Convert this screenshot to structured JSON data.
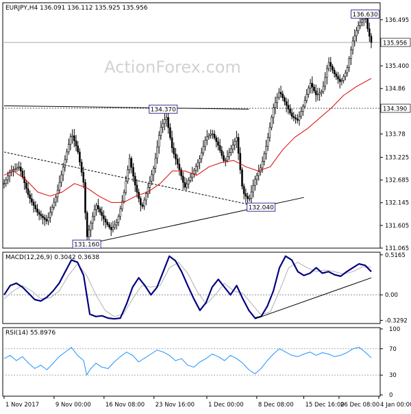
{
  "header": {
    "symbol": "EURJPY,H4",
    "ohlc": "136.091 136.112 135.925 135.956"
  },
  "watermark": "ActionForex.com",
  "colors": {
    "candle": "#000000",
    "ema_slow": "#dd0000",
    "macd_line": "#000080",
    "macd_signal": "#b0b0b0",
    "rsi": "#1e90ff",
    "trendline": "#000000",
    "label_border": "#000080",
    "current_price_tag": "#ffffff"
  },
  "chart_data": [
    {
      "type": "candlestick",
      "panel": "price",
      "header_label": "EURJPY,H4 136.091 136.112 135.925 135.956",
      "x_tick_labels": [
        "1 Nov 2017",
        "9 Nov 00:00",
        "16 Nov 08:00",
        "23 Nov 16:00",
        "1 Dec 00:00",
        "8 Dec 08:00",
        "15 Dec 16:00",
        "26 Dec 08:00",
        "4 Jan 00:00"
      ],
      "y_tick_labels": [
        136.495,
        135.956,
        135.4,
        134.86,
        134.39,
        133.78,
        133.225,
        132.685,
        132.145,
        131.605,
        131.065
      ],
      "ylim": [
        131.065,
        136.9
      ],
      "price_points": [
        [
          0,
          132.6
        ],
        [
          2,
          132.9
        ],
        [
          5,
          133.0
        ],
        [
          8,
          132.3
        ],
        [
          11,
          131.9
        ],
        [
          14,
          131.7
        ],
        [
          17,
          132.3
        ],
        [
          20,
          133.2
        ],
        [
          22,
          133.8
        ],
        [
          24,
          133.4
        ],
        [
          26,
          132.6
        ],
        [
          27,
          131.3
        ],
        [
          30,
          132.1
        ],
        [
          33,
          131.7
        ],
        [
          35,
          131.5
        ],
        [
          37,
          131.7
        ],
        [
          39,
          132.3
        ],
        [
          41,
          133.2
        ],
        [
          43,
          132.5
        ],
        [
          45,
          132.0
        ],
        [
          47,
          132.5
        ],
        [
          49,
          133.0
        ],
        [
          51,
          133.9
        ],
        [
          53,
          134.2
        ],
        [
          55,
          133.4
        ],
        [
          57,
          133.0
        ],
        [
          59,
          132.5
        ],
        [
          62,
          132.9
        ],
        [
          64,
          133.2
        ],
        [
          66,
          133.7
        ],
        [
          68,
          133.8
        ],
        [
          70,
          133.5
        ],
        [
          72,
          133.1
        ],
        [
          74,
          133.4
        ],
        [
          76,
          133.7
        ],
        [
          78,
          132.4
        ],
        [
          80,
          132.2
        ],
        [
          82,
          132.7
        ],
        [
          84,
          133.0
        ],
        [
          86,
          133.6
        ],
        [
          88,
          134.4
        ],
        [
          90,
          134.8
        ],
        [
          92,
          134.5
        ],
        [
          94,
          134.2
        ],
        [
          96,
          134.1
        ],
        [
          98,
          134.5
        ],
        [
          100,
          135.0
        ],
        [
          102,
          134.7
        ],
        [
          104,
          134.8
        ],
        [
          106,
          135.5
        ],
        [
          108,
          135.2
        ],
        [
          110,
          135.0
        ],
        [
          112,
          135.3
        ],
        [
          114,
          136.0
        ],
        [
          116,
          136.4
        ],
        [
          118,
          136.6
        ],
        [
          119,
          136.2
        ],
        [
          120,
          135.956
        ]
      ],
      "ema_points": [
        [
          0,
          132.8
        ],
        [
          3,
          132.9
        ],
        [
          7,
          132.7
        ],
        [
          11,
          132.4
        ],
        [
          15,
          132.3
        ],
        [
          19,
          132.4
        ],
        [
          23,
          132.6
        ],
        [
          27,
          132.5
        ],
        [
          31,
          132.3
        ],
        [
          35,
          132.15
        ],
        [
          39,
          132.15
        ],
        [
          43,
          132.3
        ],
        [
          47,
          132.4
        ],
        [
          51,
          132.6
        ],
        [
          55,
          132.9
        ],
        [
          59,
          132.9
        ],
        [
          63,
          132.8
        ],
        [
          67,
          133.0
        ],
        [
          71,
          133.1
        ],
        [
          75,
          133.15
        ],
        [
          79,
          133.0
        ],
        [
          83,
          132.9
        ],
        [
          87,
          133.0
        ],
        [
          91,
          133.4
        ],
        [
          95,
          133.7
        ],
        [
          99,
          133.9
        ],
        [
          103,
          134.15
        ],
        [
          107,
          134.4
        ],
        [
          111,
          134.7
        ],
        [
          115,
          134.9
        ],
        [
          120,
          135.1
        ]
      ],
      "price_labels": [
        {
          "text": "136.630",
          "x": 118,
          "y": 136.63
        },
        {
          "text": "134.370",
          "x": 52,
          "y": 134.37
        },
        {
          "text": "132.040",
          "x": 84,
          "y": 132.04
        },
        {
          "text": "131.160",
          "x": 27,
          "y": 131.16
        }
      ],
      "horizontal_lines": [
        {
          "value": 135.956,
          "label": "135.956",
          "style": "current"
        },
        {
          "value": 134.39,
          "label": "134.390",
          "style": "level"
        }
      ],
      "trendlines": [
        {
          "from": [
            0,
            134.45
          ],
          "to": [
            80,
            134.37
          ],
          "style": "solid"
        },
        {
          "from": [
            27,
            131.16
          ],
          "to": [
            98,
            132.27
          ],
          "style": "solid"
        },
        {
          "from": [
            0,
            133.35
          ],
          "to": [
            84,
            132.04
          ],
          "style": "dashed"
        }
      ]
    },
    {
      "type": "line",
      "panel": "macd",
      "header_label": "MACD(12,26,9) 0.3042 0.3638",
      "y_tick_labels": [
        0.5165,
        0.0,
        -0.3292
      ],
      "ylim": [
        -0.3292,
        0.5165
      ],
      "series": [
        {
          "role": "macd",
          "points": [
            [
              0,
              0.0
            ],
            [
              2,
              0.12
            ],
            [
              4,
              0.15
            ],
            [
              6,
              0.1
            ],
            [
              8,
              0.02
            ],
            [
              10,
              -0.06
            ],
            [
              12,
              -0.08
            ],
            [
              14,
              -0.03
            ],
            [
              16,
              0.05
            ],
            [
              18,
              0.15
            ],
            [
              20,
              0.3
            ],
            [
              22,
              0.45
            ],
            [
              24,
              0.42
            ],
            [
              26,
              0.25
            ],
            [
              27,
              0.0
            ],
            [
              28,
              -0.25
            ],
            [
              30,
              -0.28
            ],
            [
              32,
              -0.27
            ],
            [
              34,
              -0.3
            ],
            [
              36,
              -0.31
            ],
            [
              38,
              -0.3
            ],
            [
              40,
              -0.12
            ],
            [
              42,
              0.1
            ],
            [
              44,
              0.22
            ],
            [
              46,
              0.12
            ],
            [
              48,
              0.0
            ],
            [
              50,
              0.1
            ],
            [
              52,
              0.3
            ],
            [
              54,
              0.5
            ],
            [
              56,
              0.44
            ],
            [
              58,
              0.3
            ],
            [
              60,
              0.12
            ],
            [
              62,
              -0.05
            ],
            [
              64,
              -0.2
            ],
            [
              66,
              -0.1
            ],
            [
              68,
              0.1
            ],
            [
              70,
              0.2
            ],
            [
              72,
              0.1
            ],
            [
              74,
              0.0
            ],
            [
              76,
              0.12
            ],
            [
              78,
              -0.05
            ],
            [
              80,
              -0.2
            ],
            [
              82,
              -0.3
            ],
            [
              84,
              -0.28
            ],
            [
              86,
              -0.15
            ],
            [
              88,
              0.05
            ],
            [
              90,
              0.35
            ],
            [
              92,
              0.5
            ],
            [
              94,
              0.45
            ],
            [
              96,
              0.3
            ],
            [
              98,
              0.25
            ],
            [
              100,
              0.28
            ],
            [
              102,
              0.35
            ],
            [
              104,
              0.28
            ],
            [
              106,
              0.3
            ],
            [
              108,
              0.26
            ],
            [
              110,
              0.24
            ],
            [
              112,
              0.3
            ],
            [
              114,
              0.35
            ],
            [
              116,
              0.4
            ],
            [
              118,
              0.38
            ],
            [
              120,
              0.3
            ]
          ]
        },
        {
          "role": "signal",
          "points": [
            [
              0,
              -0.05
            ],
            [
              3,
              0.05
            ],
            [
              6,
              0.12
            ],
            [
              9,
              0.05
            ],
            [
              12,
              -0.05
            ],
            [
              15,
              -0.04
            ],
            [
              18,
              0.05
            ],
            [
              21,
              0.25
            ],
            [
              24,
              0.4
            ],
            [
              27,
              0.25
            ],
            [
              30,
              0.0
            ],
            [
              33,
              -0.2
            ],
            [
              36,
              -0.28
            ],
            [
              39,
              -0.25
            ],
            [
              42,
              -0.05
            ],
            [
              45,
              0.12
            ],
            [
              48,
              0.1
            ],
            [
              51,
              0.12
            ],
            [
              54,
              0.35
            ],
            [
              57,
              0.42
            ],
            [
              60,
              0.28
            ],
            [
              63,
              0.05
            ],
            [
              66,
              -0.12
            ],
            [
              69,
              0.0
            ],
            [
              72,
              0.15
            ],
            [
              75,
              0.05
            ],
            [
              78,
              0.02
            ],
            [
              81,
              -0.12
            ],
            [
              84,
              -0.26
            ],
            [
              87,
              -0.22
            ],
            [
              90,
              0.05
            ],
            [
              93,
              0.35
            ],
            [
              96,
              0.42
            ],
            [
              99,
              0.35
            ],
            [
              102,
              0.3
            ],
            [
              105,
              0.32
            ],
            [
              108,
              0.3
            ],
            [
              111,
              0.27
            ],
            [
              114,
              0.3
            ],
            [
              117,
              0.36
            ],
            [
              120,
              0.36
            ]
          ]
        }
      ],
      "trendlines": [
        {
          "from": [
            82,
            -0.31
          ],
          "to": [
            120,
            0.22
          ],
          "style": "solid"
        }
      ]
    },
    {
      "type": "line",
      "panel": "rsi",
      "header_label": "RSI(14) 55.8976",
      "y_tick_labels": [
        100,
        70,
        30,
        0
      ],
      "ylim": [
        0,
        100
      ],
      "reference_levels": [
        70,
        30
      ],
      "series": [
        {
          "role": "rsi",
          "points": [
            [
              0,
              55
            ],
            [
              2,
              60
            ],
            [
              4,
              52
            ],
            [
              6,
              58
            ],
            [
              8,
              48
            ],
            [
              10,
              40
            ],
            [
              12,
              45
            ],
            [
              14,
              38
            ],
            [
              16,
              48
            ],
            [
              18,
              58
            ],
            [
              20,
              65
            ],
            [
              22,
              72
            ],
            [
              24,
              60
            ],
            [
              26,
              52
            ],
            [
              27,
              30
            ],
            [
              28,
              38
            ],
            [
              30,
              48
            ],
            [
              32,
              42
            ],
            [
              34,
              40
            ],
            [
              36,
              50
            ],
            [
              38,
              58
            ],
            [
              40,
              65
            ],
            [
              42,
              60
            ],
            [
              44,
              50
            ],
            [
              46,
              56
            ],
            [
              48,
              62
            ],
            [
              50,
              68
            ],
            [
              52,
              65
            ],
            [
              54,
              60
            ],
            [
              56,
              52
            ],
            [
              58,
              55
            ],
            [
              60,
              45
            ],
            [
              62,
              42
            ],
            [
              64,
              50
            ],
            [
              66,
              55
            ],
            [
              68,
              62
            ],
            [
              70,
              58
            ],
            [
              72,
              52
            ],
            [
              74,
              60
            ],
            [
              76,
              55
            ],
            [
              78,
              48
            ],
            [
              80,
              38
            ],
            [
              82,
              32
            ],
            [
              84,
              40
            ],
            [
              86,
              52
            ],
            [
              88,
              62
            ],
            [
              90,
              70
            ],
            [
              92,
              65
            ],
            [
              94,
              60
            ],
            [
              96,
              58
            ],
            [
              98,
              62
            ],
            [
              100,
              65
            ],
            [
              102,
              60
            ],
            [
              104,
              64
            ],
            [
              106,
              62
            ],
            [
              108,
              58
            ],
            [
              110,
              60
            ],
            [
              112,
              64
            ],
            [
              114,
              70
            ],
            [
              116,
              72
            ],
            [
              118,
              65
            ],
            [
              120,
              56
            ]
          ]
        }
      ]
    }
  ]
}
